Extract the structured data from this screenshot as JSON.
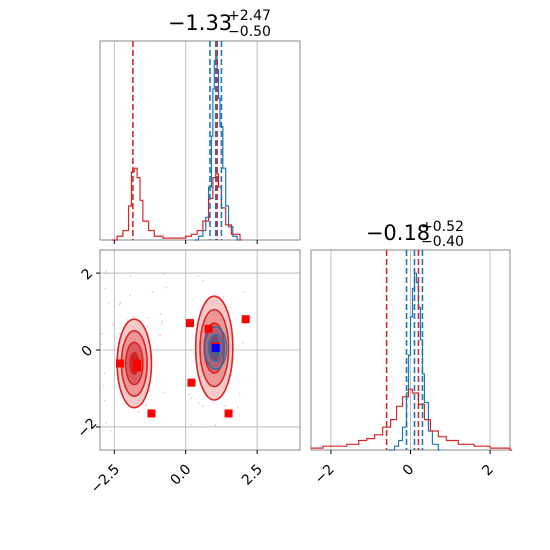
{
  "chart_data": [
    {
      "type": "histogram",
      "panel": "marginal-x",
      "title": {
        "base": "−1.33",
        "sup": "+2.47",
        "sub": "−0.50"
      },
      "xlim": [
        -3.0,
        4.0
      ],
      "grid": true,
      "series": [
        {
          "color": "#1f77b4",
          "bins": [
            {
              "x": 0.3,
              "y": 0.0
            },
            {
              "x": 0.45,
              "y": 0.02
            },
            {
              "x": 0.6,
              "y": 0.05
            },
            {
              "x": 0.7,
              "y": 0.12
            },
            {
              "x": 0.8,
              "y": 0.28
            },
            {
              "x": 0.9,
              "y": 0.55
            },
            {
              "x": 0.95,
              "y": 0.8
            },
            {
              "x": 1.0,
              "y": 0.95
            },
            {
              "x": 1.05,
              "y": 0.97
            },
            {
              "x": 1.1,
              "y": 0.9
            },
            {
              "x": 1.15,
              "y": 0.75
            },
            {
              "x": 1.2,
              "y": 0.6
            },
            {
              "x": 1.3,
              "y": 0.38
            },
            {
              "x": 1.4,
              "y": 0.18
            },
            {
              "x": 1.5,
              "y": 0.07
            },
            {
              "x": 1.65,
              "y": 0.02
            },
            {
              "x": 1.8,
              "y": 0.0
            }
          ],
          "quantiles": [
            0.85,
            1.05,
            1.25
          ]
        },
        {
          "color": "#d62728",
          "bins": [
            {
              "x": -2.6,
              "y": 0.0
            },
            {
              "x": -2.4,
              "y": 0.02
            },
            {
              "x": -2.2,
              "y": 0.05
            },
            {
              "x": -2.0,
              "y": 0.18
            },
            {
              "x": -1.9,
              "y": 0.36
            },
            {
              "x": -1.8,
              "y": 0.38
            },
            {
              "x": -1.7,
              "y": 0.33
            },
            {
              "x": -1.6,
              "y": 0.21
            },
            {
              "x": -1.5,
              "y": 0.1
            },
            {
              "x": -1.3,
              "y": 0.05
            },
            {
              "x": -1.1,
              "y": 0.02
            },
            {
              "x": -0.8,
              "y": 0.01
            },
            {
              "x": -0.2,
              "y": 0.01
            },
            {
              "x": 0.0,
              "y": 0.02
            },
            {
              "x": 0.2,
              "y": 0.03
            },
            {
              "x": 0.4,
              "y": 0.05
            },
            {
              "x": 0.6,
              "y": 0.1
            },
            {
              "x": 0.8,
              "y": 0.22
            },
            {
              "x": 0.95,
              "y": 0.33
            },
            {
              "x": 1.05,
              "y": 0.35
            },
            {
              "x": 1.15,
              "y": 0.28
            },
            {
              "x": 1.25,
              "y": 0.17
            },
            {
              "x": 1.4,
              "y": 0.08
            },
            {
              "x": 1.6,
              "y": 0.03
            },
            {
              "x": 1.9,
              "y": 0.0
            }
          ],
          "quantiles": [
            -1.85,
            1.1
          ]
        }
      ]
    },
    {
      "type": "histogram",
      "panel": "marginal-y",
      "title": {
        "base": "−0.18",
        "sup": "+0.52",
        "sub": "−0.40"
      },
      "xlim": [
        -2.5,
        2.5
      ],
      "xticks": [
        "−2",
        "0",
        "2"
      ],
      "xtick_values": [
        -2,
        0,
        2
      ],
      "grid": true,
      "series": [
        {
          "color": "#1f77b4",
          "bins": [
            {
              "x": -0.55,
              "y": 0.0
            },
            {
              "x": -0.4,
              "y": 0.02
            },
            {
              "x": -0.3,
              "y": 0.05
            },
            {
              "x": -0.2,
              "y": 0.12
            },
            {
              "x": -0.1,
              "y": 0.3
            },
            {
              "x": -0.05,
              "y": 0.5
            },
            {
              "x": 0.0,
              "y": 0.7
            },
            {
              "x": 0.05,
              "y": 0.85
            },
            {
              "x": 0.1,
              "y": 0.93
            },
            {
              "x": 0.15,
              "y": 0.88
            },
            {
              "x": 0.2,
              "y": 0.75
            },
            {
              "x": 0.25,
              "y": 0.58
            },
            {
              "x": 0.3,
              "y": 0.4
            },
            {
              "x": 0.35,
              "y": 0.25
            },
            {
              "x": 0.45,
              "y": 0.1
            },
            {
              "x": 0.55,
              "y": 0.03
            },
            {
              "x": 0.7,
              "y": 0.0
            }
          ],
          "quantiles": [
            -0.1,
            0.1,
            0.3
          ]
        },
        {
          "color": "#d62728",
          "bins": [
            {
              "x": -2.5,
              "y": 0.01
            },
            {
              "x": -2.2,
              "y": 0.02
            },
            {
              "x": -1.9,
              "y": 0.02
            },
            {
              "x": -1.6,
              "y": 0.03
            },
            {
              "x": -1.3,
              "y": 0.05
            },
            {
              "x": -1.1,
              "y": 0.06
            },
            {
              "x": -0.9,
              "y": 0.08
            },
            {
              "x": -0.7,
              "y": 0.12
            },
            {
              "x": -0.5,
              "y": 0.16
            },
            {
              "x": -0.35,
              "y": 0.23
            },
            {
              "x": -0.2,
              "y": 0.28
            },
            {
              "x": -0.05,
              "y": 0.32
            },
            {
              "x": 0.05,
              "y": 0.3
            },
            {
              "x": 0.2,
              "y": 0.24
            },
            {
              "x": 0.35,
              "y": 0.16
            },
            {
              "x": 0.5,
              "y": 0.1
            },
            {
              "x": 0.7,
              "y": 0.07
            },
            {
              "x": 0.9,
              "y": 0.05
            },
            {
              "x": 1.2,
              "y": 0.03
            },
            {
              "x": 1.6,
              "y": 0.02
            },
            {
              "x": 2.0,
              "y": 0.01
            },
            {
              "x": 2.5,
              "y": 0.0
            }
          ],
          "quantiles": [
            -0.6,
            0.2
          ]
        }
      ]
    },
    {
      "type": "contour-scatter",
      "panel": "joint",
      "xlim": [
        -3.0,
        4.0
      ],
      "ylim": [
        -2.6,
        2.6
      ],
      "xticks": [
        "−2.5",
        "0.0",
        "2.5"
      ],
      "xtick_values": [
        -2.5,
        0.0,
        2.5
      ],
      "yticks": [
        "−2",
        "0",
        "2"
      ],
      "ytick_values": [
        -2,
        0,
        2
      ],
      "grid": true,
      "red_contours": [
        {
          "cx": -1.8,
          "cy": -0.35,
          "levels": [
            {
              "rx": 0.6,
              "ry": 1.15,
              "fill": "#f6c9c9"
            },
            {
              "rx": 0.45,
              "ry": 0.85,
              "fill": "#ee9595"
            },
            {
              "rx": 0.3,
              "ry": 0.55,
              "fill": "#e05c5c"
            },
            {
              "rx": 0.15,
              "ry": 0.28,
              "fill": "#c62828"
            }
          ]
        },
        {
          "cx": 1.0,
          "cy": 0.05,
          "levels": [
            {
              "rx": 0.65,
              "ry": 1.35,
              "fill": "#f6c9c9"
            },
            {
              "rx": 0.5,
              "ry": 1.0,
              "fill": "#ee9595"
            },
            {
              "rx": 0.35,
              "ry": 0.65,
              "fill": "#e05c5c"
            },
            {
              "rx": 0.18,
              "ry": 0.32,
              "fill": "#c62828"
            }
          ]
        }
      ],
      "blue_contour": {
        "cx": 1.05,
        "cy": 0.05,
        "levels": [
          {
            "rx": 0.38,
            "ry": 0.55
          },
          {
            "rx": 0.25,
            "ry": 0.35
          },
          {
            "rx": 0.12,
            "ry": 0.18
          }
        ]
      },
      "red_markers": [
        {
          "x": -2.3,
          "y": -0.35
        },
        {
          "x": -1.7,
          "y": -0.35
        },
        {
          "x": -1.7,
          "y": -0.45
        },
        {
          "x": -1.2,
          "y": -1.65
        },
        {
          "x": 0.15,
          "y": 0.7
        },
        {
          "x": 0.8,
          "y": 0.55
        },
        {
          "x": 0.2,
          "y": -0.85
        },
        {
          "x": 1.5,
          "y": -1.65
        },
        {
          "x": 2.1,
          "y": 0.8
        },
        {
          "x": 1.05,
          "y": 0.1
        }
      ],
      "blue_marker": {
        "x": 1.05,
        "y": 0.05
      },
      "colors": {
        "red": "#d62728",
        "blue": "#1f77b4",
        "marker_red": "#ff0000",
        "marker_blue": "#0000ff",
        "grid": "#b0b0b0"
      }
    }
  ]
}
